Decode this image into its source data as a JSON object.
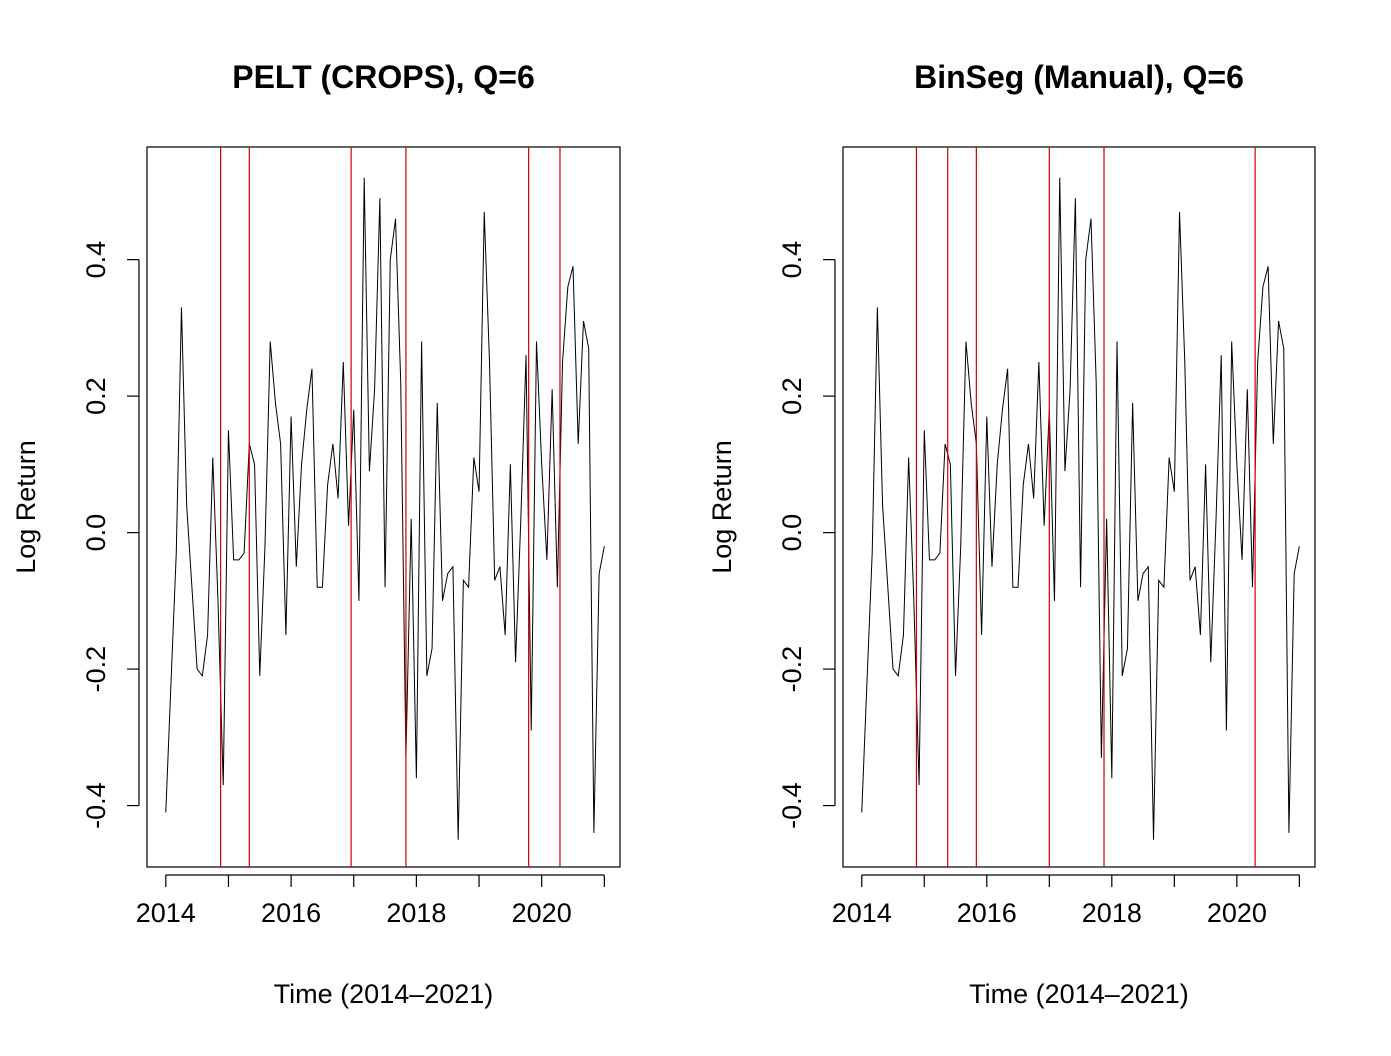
{
  "chart_data": [
    {
      "type": "line",
      "title": "PELT (CROPS), Q=6",
      "xlabel": "Time (2014–2021)",
      "ylabel": "Log Return",
      "xlim": [
        2013.7,
        2021.25
      ],
      "ylim": [
        -0.49,
        0.565
      ],
      "xticks": [
        2014,
        2015,
        2016,
        2017,
        2018,
        2019,
        2020,
        2021
      ],
      "xtick_labels": [
        "2014",
        "",
        "2016",
        "",
        "2018",
        "",
        "2020",
        ""
      ],
      "yticks": [
        -0.4,
        -0.2,
        0.0,
        0.2,
        0.4
      ],
      "ytick_labels": [
        "-0.4",
        "-0.2",
        "0.0",
        "0.2",
        "0.4"
      ],
      "grid": false,
      "line_color": "#000000",
      "changepoint_color": "#cc0000",
      "changepoints": [
        2014.875,
        2015.333,
        2016.958,
        2017.833,
        2019.792,
        2020.292
      ],
      "series": [
        {
          "x": [
            2014.0,
            2014.083,
            2014.167,
            2014.25,
            2014.333,
            2014.417,
            2014.5,
            2014.583,
            2014.667,
            2014.75,
            2014.833,
            2014.917,
            2015.0,
            2015.083,
            2015.167,
            2015.25,
            2015.333,
            2015.417,
            2015.5,
            2015.583,
            2015.667,
            2015.75,
            2015.833,
            2015.917,
            2016.0,
            2016.083,
            2016.167,
            2016.25,
            2016.333,
            2016.417,
            2016.5,
            2016.583,
            2016.667,
            2016.75,
            2016.833,
            2016.917,
            2017.0,
            2017.083,
            2017.167,
            2017.25,
            2017.333,
            2017.417,
            2017.5,
            2017.583,
            2017.667,
            2017.75,
            2017.833,
            2017.917,
            2018.0,
            2018.083,
            2018.167,
            2018.25,
            2018.333,
            2018.417,
            2018.5,
            2018.583,
            2018.667,
            2018.75,
            2018.833,
            2018.917,
            2019.0,
            2019.083,
            2019.167,
            2019.25,
            2019.333,
            2019.417,
            2019.5,
            2019.583,
            2019.667,
            2019.75,
            2019.833,
            2019.917,
            2020.0,
            2020.083,
            2020.167,
            2020.25,
            2020.333,
            2020.417,
            2020.5,
            2020.583,
            2020.667,
            2020.75,
            2020.833,
            2020.917,
            2021.0
          ],
          "y": [
            -0.41,
            -0.22,
            -0.03,
            0.33,
            0.04,
            -0.08,
            -0.2,
            -0.21,
            -0.15,
            0.11,
            -0.1,
            -0.37,
            0.15,
            -0.04,
            -0.04,
            -0.03,
            0.13,
            0.1,
            -0.21,
            -0.02,
            0.28,
            0.19,
            0.13,
            -0.15,
            0.17,
            -0.05,
            0.1,
            0.18,
            0.24,
            -0.08,
            -0.08,
            0.07,
            0.13,
            0.05,
            0.25,
            0.01,
            0.18,
            -0.1,
            0.52,
            0.09,
            0.21,
            0.49,
            -0.08,
            0.4,
            0.46,
            0.22,
            -0.33,
            0.02,
            -0.36,
            0.28,
            -0.21,
            -0.17,
            0.19,
            -0.1,
            -0.06,
            -0.05,
            -0.45,
            -0.07,
            -0.08,
            0.11,
            0.06,
            0.47,
            0.25,
            -0.07,
            -0.05,
            -0.15,
            0.1,
            -0.19,
            0.02,
            0.26,
            -0.29,
            0.28,
            0.1,
            -0.04,
            0.21,
            -0.08,
            0.25,
            0.36,
            0.39,
            0.13,
            0.31,
            0.27,
            -0.44,
            -0.06,
            -0.02
          ]
        }
      ]
    },
    {
      "type": "line",
      "title": "BinSeg (Manual), Q=6",
      "xlabel": "Time (2014–2021)",
      "ylabel": "Log Return",
      "xlim": [
        2013.7,
        2021.25
      ],
      "ylim": [
        -0.49,
        0.565
      ],
      "xticks": [
        2014,
        2015,
        2016,
        2017,
        2018,
        2019,
        2020,
        2021
      ],
      "xtick_labels": [
        "2014",
        "",
        "2016",
        "",
        "2018",
        "",
        "2020",
        ""
      ],
      "yticks": [
        -0.4,
        -0.2,
        0.0,
        0.2,
        0.4
      ],
      "ytick_labels": [
        "-0.4",
        "-0.2",
        "0.0",
        "0.2",
        "0.4"
      ],
      "grid": false,
      "line_color": "#000000",
      "changepoint_color": "#cc0000",
      "changepoints": [
        2014.875,
        2015.375,
        2015.833,
        2017.0,
        2017.875,
        2020.292
      ],
      "series": [
        {
          "x": [
            2014.0,
            2014.083,
            2014.167,
            2014.25,
            2014.333,
            2014.417,
            2014.5,
            2014.583,
            2014.667,
            2014.75,
            2014.833,
            2014.917,
            2015.0,
            2015.083,
            2015.167,
            2015.25,
            2015.333,
            2015.417,
            2015.5,
            2015.583,
            2015.667,
            2015.75,
            2015.833,
            2015.917,
            2016.0,
            2016.083,
            2016.167,
            2016.25,
            2016.333,
            2016.417,
            2016.5,
            2016.583,
            2016.667,
            2016.75,
            2016.833,
            2016.917,
            2017.0,
            2017.083,
            2017.167,
            2017.25,
            2017.333,
            2017.417,
            2017.5,
            2017.583,
            2017.667,
            2017.75,
            2017.833,
            2017.917,
            2018.0,
            2018.083,
            2018.167,
            2018.25,
            2018.333,
            2018.417,
            2018.5,
            2018.583,
            2018.667,
            2018.75,
            2018.833,
            2018.917,
            2019.0,
            2019.083,
            2019.167,
            2019.25,
            2019.333,
            2019.417,
            2019.5,
            2019.583,
            2019.667,
            2019.75,
            2019.833,
            2019.917,
            2020.0,
            2020.083,
            2020.167,
            2020.25,
            2020.333,
            2020.417,
            2020.5,
            2020.583,
            2020.667,
            2020.75,
            2020.833,
            2020.917,
            2021.0
          ],
          "y": [
            -0.41,
            -0.22,
            -0.03,
            0.33,
            0.04,
            -0.08,
            -0.2,
            -0.21,
            -0.15,
            0.11,
            -0.1,
            -0.37,
            0.15,
            -0.04,
            -0.04,
            -0.03,
            0.13,
            0.1,
            -0.21,
            -0.02,
            0.28,
            0.19,
            0.13,
            -0.15,
            0.17,
            -0.05,
            0.1,
            0.18,
            0.24,
            -0.08,
            -0.08,
            0.07,
            0.13,
            0.05,
            0.25,
            0.01,
            0.18,
            -0.1,
            0.52,
            0.09,
            0.21,
            0.49,
            -0.08,
            0.4,
            0.46,
            0.22,
            -0.33,
            0.02,
            -0.36,
            0.28,
            -0.21,
            -0.17,
            0.19,
            -0.1,
            -0.06,
            -0.05,
            -0.45,
            -0.07,
            -0.08,
            0.11,
            0.06,
            0.47,
            0.25,
            -0.07,
            -0.05,
            -0.15,
            0.1,
            -0.19,
            0.02,
            0.26,
            -0.29,
            0.28,
            0.1,
            -0.04,
            0.21,
            -0.08,
            0.25,
            0.36,
            0.39,
            0.13,
            0.31,
            0.27,
            -0.44,
            -0.06,
            -0.02
          ]
        }
      ]
    }
  ]
}
